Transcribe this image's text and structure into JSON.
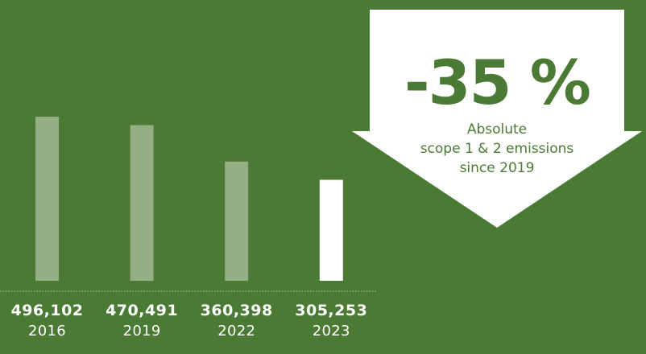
{
  "chart_data": {
    "type": "bar",
    "categories": [
      "2016",
      "2019",
      "2022",
      "2023"
    ],
    "values": [
      496102,
      470491,
      360398,
      305253
    ],
    "value_labels": [
      "496,102",
      "470,491",
      "360,398",
      "305,253"
    ],
    "highlight_index": 3,
    "grid": false,
    "legend": "none",
    "title": "",
    "xlabel": "",
    "ylabel": ""
  },
  "callout": {
    "headline": "-35 %",
    "line1": "Absolute",
    "line2": "scope 1 & 2 emissions",
    "line3": "since 2019"
  },
  "colors": {
    "background": "#4a7a33",
    "bar": "#94af84",
    "bar_highlight": "#ffffff",
    "callout_fill": "#ffffff",
    "callout_text": "#4a7a33"
  }
}
